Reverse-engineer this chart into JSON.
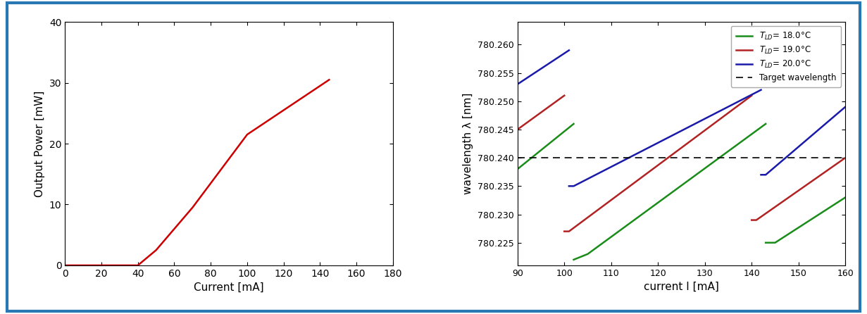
{
  "left": {
    "xlabel": "Current [mA]",
    "ylabel": "Output Power [mW]",
    "xlim": [
      0,
      180
    ],
    "ylim": [
      0,
      40
    ],
    "xticks": [
      0,
      20,
      40,
      60,
      80,
      100,
      120,
      140,
      160,
      180
    ],
    "yticks": [
      0,
      10,
      20,
      30,
      40
    ],
    "line_color": "#cc0000",
    "curve_x": [
      0,
      38,
      40,
      50,
      60,
      70,
      80,
      90,
      100,
      110,
      120,
      130,
      140,
      145
    ],
    "curve_y": [
      0,
      0,
      0,
      2.5,
      6.0,
      9.5,
      13.5,
      17.5,
      21.5,
      23.5,
      25.5,
      27.5,
      29.5,
      30.5
    ]
  },
  "right": {
    "xlabel": "current I [mA]",
    "ylabel": "wavelength λ [nm]",
    "xlim": [
      90,
      160
    ],
    "ylim": [
      780.221,
      780.264
    ],
    "xticks": [
      90,
      100,
      110,
      120,
      130,
      140,
      150,
      160
    ],
    "yticks": [
      780.225,
      780.23,
      780.235,
      780.24,
      780.245,
      780.25,
      780.255,
      780.26
    ],
    "target_wavelength": 780.24,
    "colors": {
      "green": "#1a8c1a",
      "red": "#b22222",
      "blue": "#1a1aaa"
    },
    "green_x": [
      90,
      102,
      102,
      105,
      105,
      143,
      143,
      145,
      145,
      160
    ],
    "green_y": [
      780.238,
      780.246,
      780.222,
      780.223,
      780.223,
      780.246,
      780.225,
      780.225,
      780.225,
      780.233
    ],
    "red_x": [
      90,
      100,
      100,
      101,
      101,
      140,
      140,
      141,
      141,
      160
    ],
    "red_y": [
      780.245,
      780.251,
      780.227,
      780.227,
      780.227,
      780.251,
      780.229,
      780.229,
      780.229,
      780.24
    ],
    "blue_x": [
      90,
      101,
      101,
      102,
      102,
      142,
      142,
      143,
      143,
      160
    ],
    "blue_y": [
      780.253,
      780.259,
      780.235,
      780.235,
      780.235,
      780.252,
      780.237,
      780.237,
      780.237,
      780.249
    ]
  },
  "figure": {
    "bg_color": "#ffffff",
    "border_color": "#2878b4",
    "border_linewidth": 3.0
  }
}
